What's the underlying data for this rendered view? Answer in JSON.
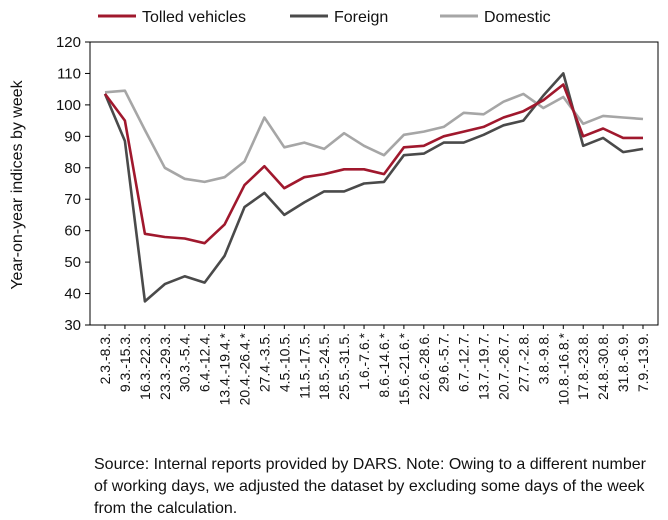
{
  "chart_data": {
    "type": "line",
    "title": "",
    "xlabel": "",
    "ylabel": "Year-on-year indices by week",
    "ylim": [
      30,
      120
    ],
    "yticks": [
      30,
      40,
      50,
      60,
      70,
      80,
      90,
      100,
      110,
      120
    ],
    "grid": false,
    "legend_position": "top",
    "categories": [
      "2.3.-8.3.",
      "9.3.-15.3.",
      "16.3.-22.3.",
      "23.3.-29.3.",
      "30.3.-5.4.",
      "6.4.-12.4.",
      "13.4.-19.4.*",
      "20.4.-26.4.*",
      "27.4.-3.5.",
      "4.5.-10.5.",
      "11.5.-17.5.",
      "18.5.-24.5.",
      "25.5.-31.5.",
      "1.6.-7.6.*",
      "8.6.-14.6.*",
      "15.6.-21.6.*",
      "22.6.-28.6.",
      "29.6.-5.7.",
      "6.7.-12.7.",
      "13.7.-19.7.",
      "20.7.-26.7.",
      "27.7.-2.8.",
      "3.8.-9.8.",
      "10.8.-16.8.*",
      "17.8.-23.8.",
      "24.8.-30.8.",
      "31.8.-6.9.",
      "7.9.-13.9."
    ],
    "series": [
      {
        "name": "Tolled vehicles",
        "color": "#a0182d",
        "values": [
          103.5,
          95,
          59,
          58,
          57.5,
          56,
          62,
          74.5,
          80.5,
          73.5,
          77,
          78,
          79.5,
          79.5,
          78,
          86.5,
          87,
          90,
          91.5,
          93,
          96,
          98,
          101.5,
          106.5,
          90,
          92.5,
          89.5,
          89.5
        ]
      },
      {
        "name": "Foreign",
        "color": "#4a4a4a",
        "values": [
          103.5,
          88.5,
          37.5,
          43,
          45.5,
          43.5,
          52,
          67.5,
          72,
          65,
          69,
          72.5,
          72.5,
          75,
          75.5,
          84,
          84.5,
          88,
          88,
          90.5,
          93.5,
          95,
          103,
          110,
          87,
          89.5,
          85,
          86
        ]
      },
      {
        "name": "Domestic",
        "color": "#a6a6a6",
        "values": [
          104,
          104.5,
          92,
          80,
          76.5,
          75.5,
          77,
          82,
          96,
          86.5,
          88,
          86,
          91,
          87,
          84,
          90.5,
          91.5,
          93,
          97.5,
          97,
          101,
          103.5,
          99,
          102.5,
          94,
          96.5,
          96,
          95.5
        ]
      }
    ]
  },
  "note": "Source: Internal reports provided by DARS. Note: Owing to a different number of working days, we adjusted the dataset by excluding some days of the week from the calculation."
}
